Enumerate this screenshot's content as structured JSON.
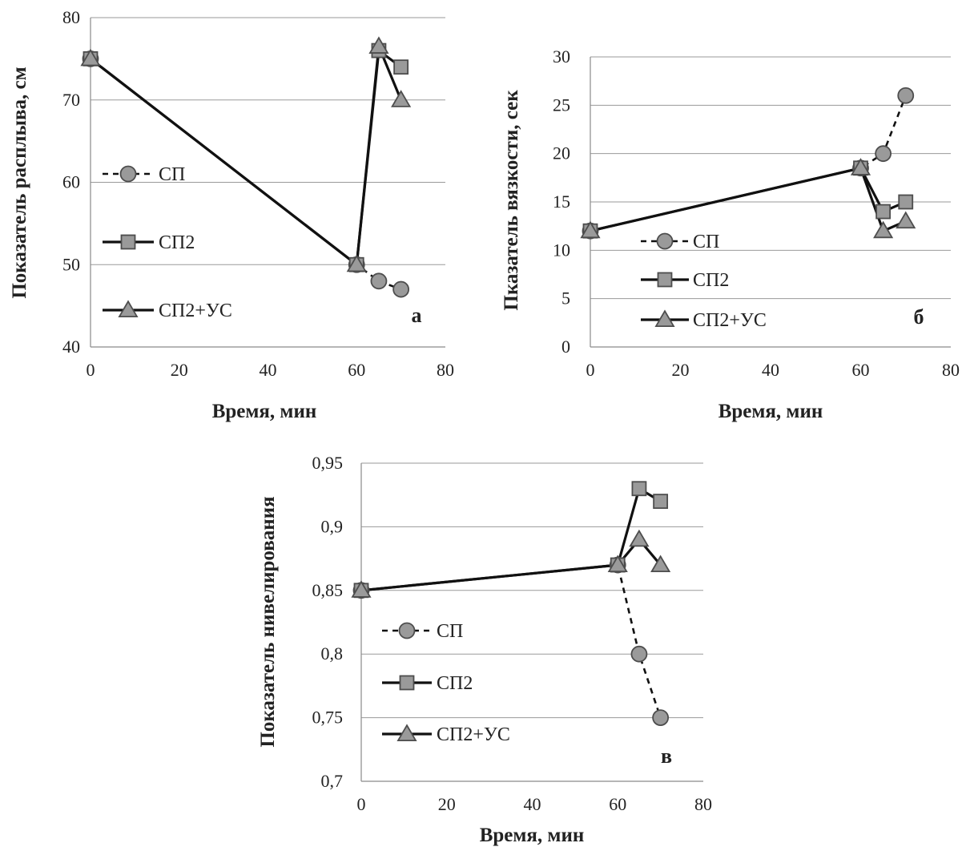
{
  "chart_data": [
    {
      "id": "a",
      "type": "line",
      "panel_label": "а",
      "xlabel": "Время, мин",
      "ylabel": "Показатель расплыва, см",
      "xlim": [
        0,
        80
      ],
      "ylim": [
        40,
        80
      ],
      "x_ticks": [
        0,
        20,
        40,
        60,
        80
      ],
      "y_ticks": [
        40,
        50,
        60,
        70,
        80
      ],
      "x_tick_labels": [
        "0",
        "20",
        "40",
        "60",
        "80"
      ],
      "y_tick_labels": [
        "40",
        "50",
        "60",
        "70",
        "80"
      ],
      "grid": "horizontal",
      "legend_position": "left",
      "series": [
        {
          "name": "СП",
          "marker": "circle",
          "line": "dashed",
          "x": [
            0,
            60,
            65,
            70
          ],
          "y": [
            75,
            50,
            48,
            47
          ]
        },
        {
          "name": "СП2",
          "marker": "square",
          "line": "solid",
          "x": [
            0,
            60,
            65,
            70
          ],
          "y": [
            75,
            50,
            76,
            74
          ]
        },
        {
          "name": "СП2+УС",
          "marker": "triangle",
          "line": "solid",
          "x": [
            0,
            60,
            65,
            70
          ],
          "y": [
            75,
            50,
            76.5,
            70
          ]
        }
      ]
    },
    {
      "id": "b",
      "type": "line",
      "panel_label": "б",
      "xlabel": "Время, мин",
      "ylabel": "Пказатель вязкости, сек",
      "xlim": [
        0,
        80
      ],
      "ylim": [
        0,
        30
      ],
      "x_ticks": [
        0,
        20,
        40,
        60,
        80
      ],
      "y_ticks": [
        0,
        5,
        10,
        15,
        20,
        25,
        30
      ],
      "x_tick_labels": [
        "0",
        "20",
        "40",
        "60",
        "80"
      ],
      "y_tick_labels": [
        "0",
        "5",
        "10",
        "15",
        "20",
        "25",
        "30"
      ],
      "grid": "horizontal",
      "legend_position": "bottom-left",
      "series": [
        {
          "name": "СП",
          "marker": "circle",
          "line": "dashed",
          "x": [
            0,
            60,
            65,
            70
          ],
          "y": [
            12,
            18.5,
            20,
            26
          ]
        },
        {
          "name": "СП2",
          "marker": "square",
          "line": "solid",
          "x": [
            0,
            60,
            65,
            70
          ],
          "y": [
            12,
            18.5,
            14,
            15
          ]
        },
        {
          "name": "СП2+УС",
          "marker": "triangle",
          "line": "solid",
          "x": [
            0,
            60,
            65,
            70
          ],
          "y": [
            12,
            18.5,
            12,
            13
          ]
        }
      ]
    },
    {
      "id": "c",
      "type": "line",
      "panel_label": "в",
      "xlabel": "Время, мин",
      "ylabel": "Показатель нивелирования",
      "xlim": [
        0,
        80
      ],
      "ylim": [
        0.7,
        0.95
      ],
      "x_ticks": [
        0,
        20,
        40,
        60,
        80
      ],
      "y_ticks": [
        0.7,
        0.75,
        0.8,
        0.85,
        0.9,
        0.95
      ],
      "x_tick_labels": [
        "0",
        "20",
        "40",
        "60",
        "80"
      ],
      "y_tick_labels": [
        "0,7",
        "0,75",
        "0,8",
        "0,85",
        "0,9",
        "0,95"
      ],
      "grid": "horizontal",
      "legend_position": "bottom-left",
      "series": [
        {
          "name": "СП",
          "marker": "circle",
          "line": "dashed",
          "x": [
            0,
            60,
            65,
            70
          ],
          "y": [
            0.85,
            0.87,
            0.8,
            0.75
          ]
        },
        {
          "name": "СП2",
          "marker": "square",
          "line": "solid",
          "x": [
            0,
            60,
            65,
            70
          ],
          "y": [
            0.85,
            0.87,
            0.93,
            0.92
          ]
        },
        {
          "name": "СП2+УС",
          "marker": "triangle",
          "line": "solid",
          "x": [
            0,
            60,
            65,
            70
          ],
          "y": [
            0.85,
            0.87,
            0.89,
            0.87
          ]
        }
      ]
    }
  ],
  "colors": {
    "line": "#111111",
    "marker_fill": "#9a9a9a",
    "marker_stroke": "#4d4d4d",
    "grid": "#9a9a9a"
  }
}
